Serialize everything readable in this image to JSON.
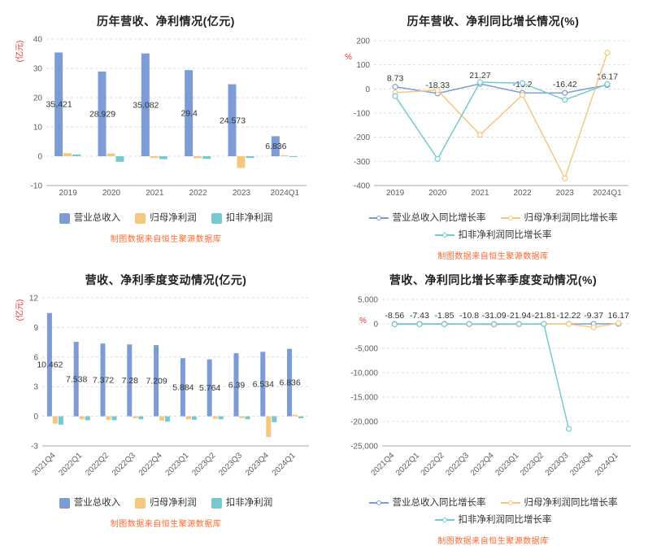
{
  "colors": {
    "revenue": "#7d9bd4",
    "net_profit": "#f5c87e",
    "deducted": "#76c9cf",
    "unit_label": "#e0302e",
    "footer": "#fe6a30",
    "axis_text": "#5e5e5e",
    "grid": "#dcdcdc",
    "label_text": "#333333"
  },
  "footer_note": "制图数据来自恒生聚源数据库",
  "chart_data": [
    {
      "id": "annual-revenue-profit-bar-chart",
      "type": "bar",
      "title": "历年营收、净利情况(亿元)",
      "unit_label": "(亿元)",
      "legend_position": "bottom",
      "grid": true,
      "categories": [
        "2019",
        "2020",
        "2021",
        "2022",
        "2023",
        "2024Q1"
      ],
      "ylim": [
        -10,
        40
      ],
      "yticks": [
        40,
        30,
        20,
        10,
        0,
        -10
      ],
      "ytick_labels": [
        "40",
        "30",
        "20",
        "10",
        "0",
        "-10"
      ],
      "series": [
        {
          "name": "营业总收入",
          "color_key": "revenue",
          "values": [
            35.421,
            28.929,
            35.082,
            29.4,
            24.573,
            6.836
          ],
          "labels": [
            "35.421",
            "28.929",
            "35.082",
            "29.4",
            "24.573",
            "6.836"
          ]
        },
        {
          "name": "归母净利润",
          "color_key": "net_profit",
          "values": [
            1.05,
            0.95,
            -0.6,
            -0.7,
            -4.0,
            0.3
          ]
        },
        {
          "name": "扣非净利润",
          "color_key": "deducted",
          "values": [
            0.6,
            -1.9,
            -1.0,
            -0.9,
            -0.6,
            -0.2
          ]
        }
      ]
    },
    {
      "id": "annual-growth-line-chart",
      "type": "line",
      "title": "历年营收、净利同比增长情况(%)",
      "unit_label": "%",
      "legend_position": "bottom",
      "grid": true,
      "categories": [
        "2019",
        "2020",
        "2021",
        "2022",
        "2023",
        "2024Q1"
      ],
      "ylim": [
        -400,
        200
      ],
      "yticks": [
        200,
        100,
        0,
        -100,
        -200,
        -300,
        -400
      ],
      "ytick_labels": [
        "200",
        "100",
        "0",
        "-100",
        "-200",
        "-300",
        "-400"
      ],
      "series": [
        {
          "name": "营业总收入同比增长率",
          "color_key": "revenue",
          "values": [
            8.73,
            -18.33,
            21.27,
            -16.2,
            -16.42,
            16.17
          ],
          "labels": [
            "8.73",
            "-18.33",
            "21.27",
            "-16.2",
            "-16.42",
            "16.17"
          ]
        },
        {
          "name": "归母净利润同比增长率",
          "color_key": "net_profit",
          "values": [
            -15,
            -5,
            -190,
            -25,
            -370,
            150
          ]
        },
        {
          "name": "扣非净利润同比增长率",
          "color_key": "deducted",
          "values": [
            -30,
            -290,
            28,
            24,
            -45,
            20
          ]
        }
      ]
    },
    {
      "id": "quarterly-revenue-profit-bar-chart",
      "type": "bar",
      "title": "营收、净利季度变动情况(亿元)",
      "unit_label": "(亿元)",
      "legend_position": "bottom",
      "grid": true,
      "categories": [
        "2021Q4",
        "2022Q1",
        "2022Q2",
        "2022Q3",
        "2022Q4",
        "2023Q1",
        "2023Q2",
        "2023Q3",
        "2023Q4",
        "2024Q1"
      ],
      "ylim": [
        -3,
        12
      ],
      "yticks": [
        12,
        9,
        6,
        3,
        0,
        -3
      ],
      "ytick_labels": [
        "12",
        "9",
        "6",
        "3",
        "0",
        "-3"
      ],
      "series": [
        {
          "name": "营业总收入",
          "color_key": "revenue",
          "values": [
            10.462,
            7.538,
            7.372,
            7.28,
            7.209,
            5.884,
            5.764,
            6.39,
            6.534,
            6.836
          ],
          "labels": [
            "10.462",
            "7.538",
            "7.372",
            "7.28",
            "7.209",
            "5.884",
            "5.764",
            "6.39",
            "6.534",
            "6.836"
          ]
        },
        {
          "name": "归母净利润",
          "color_key": "net_profit",
          "values": [
            -0.75,
            -0.3,
            -0.35,
            -0.2,
            -0.45,
            -0.3,
            -0.25,
            -0.2,
            -2.1,
            0.15
          ]
        },
        {
          "name": "扣非净利润",
          "color_key": "deducted",
          "values": [
            -0.85,
            -0.4,
            -0.4,
            -0.3,
            -0.55,
            -0.35,
            -0.3,
            -0.3,
            -0.6,
            -0.2
          ]
        }
      ]
    },
    {
      "id": "quarterly-growth-line-chart",
      "type": "line",
      "title": "营收、净利同比增长率季度变动情况(%)",
      "unit_label": "%",
      "legend_position": "bottom",
      "grid": true,
      "categories": [
        "2021Q4",
        "2022Q1",
        "2022Q2",
        "2022Q3",
        "2022Q4",
        "2023Q1",
        "2023Q2",
        "2023Q3",
        "2023Q4",
        "2024Q1"
      ],
      "ylim": [
        -25000,
        5000
      ],
      "yticks": [
        5000,
        0,
        -5000,
        -10000,
        -15000,
        -20000,
        -25000
      ],
      "ytick_labels": [
        "5,000",
        "0",
        "-5,000",
        "-10,000",
        "-15,000",
        "-20,000",
        "-25,000"
      ],
      "series": [
        {
          "name": "营业总收入同比增长率",
          "color_key": "revenue",
          "values": [
            -8.56,
            -7.43,
            -1.85,
            -10.8,
            -31.09,
            -21.94,
            -21.81,
            -12.22,
            -9.37,
            16.17
          ],
          "labels": [
            "-8.56",
            "-7.43",
            "-1.85",
            "-10.8",
            "-31.09",
            "-21.94",
            "-21.81",
            "-12.22",
            "-9.37",
            "16.17"
          ]
        },
        {
          "name": "归母净利润同比增长率",
          "color_key": "net_profit",
          "values": [
            -120,
            -60,
            -80,
            -90,
            -150,
            -70,
            -40,
            -50,
            -700,
            150
          ]
        },
        {
          "name": "扣非净利润同比增长率",
          "color_key": "deducted",
          "values": [
            -90,
            -70,
            -60,
            -50,
            -80,
            -45,
            -35,
            -21500,
            null,
            null
          ]
        }
      ]
    }
  ]
}
